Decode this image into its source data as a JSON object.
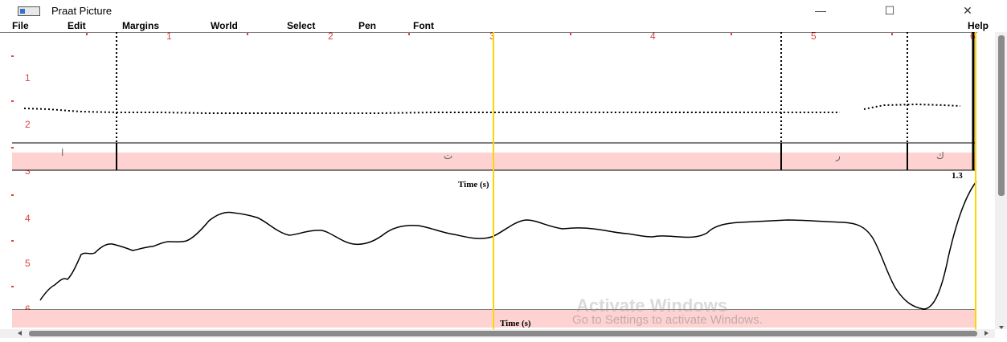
{
  "window": {
    "title": "Praat Picture",
    "minimize_glyph": "—",
    "maximize_glyph": "☐",
    "close_glyph": "✕"
  },
  "menubar": {
    "items": [
      "File",
      "Edit",
      "Margins",
      "World",
      "Select",
      "Pen",
      "Font"
    ],
    "help": "Help"
  },
  "picture": {
    "top_ruler_labels": [
      "1",
      "2",
      "3",
      "4",
      "5",
      "6"
    ],
    "left_ruler_labels": [
      "1",
      "2",
      "3",
      "4",
      "5",
      "6"
    ],
    "upper_xlabel": "Time (s)",
    "upper_end_value": "1.3",
    "lower_xlabel": "Time (s)",
    "tier_labels": [
      "ا",
      "ت",
      "ر",
      "ك"
    ],
    "colors": {
      "ruler_red": "#e04040",
      "selection_yellow": "#ffd400",
      "tier_pink": "#ffd2d2"
    }
  },
  "watermark": {
    "line1": "Activate Windows",
    "line2": "Go to Settings to activate Windows."
  }
}
